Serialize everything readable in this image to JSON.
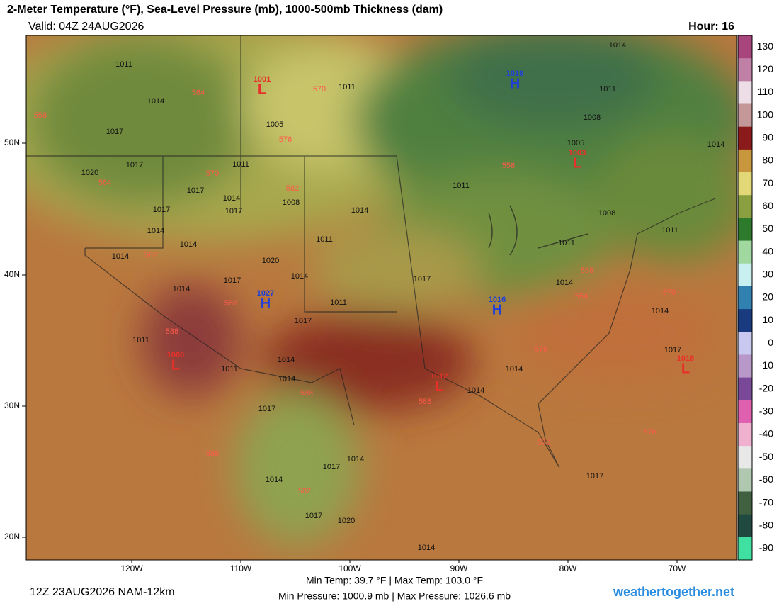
{
  "header": {
    "title": "2-Meter Temperature (°F), Sea-Level Pressure (mb), 1000-500mb Thickness (dam)",
    "valid": "Valid: 04Z 24AUG2026",
    "hour": "Hour: 16"
  },
  "map": {
    "lat_labels": [
      "50N",
      "40N",
      "30N",
      "20N"
    ],
    "lon_labels": [
      "120W",
      "110W",
      "100W",
      "90W",
      "80W",
      "70W"
    ],
    "centers": [
      {
        "letter": "L",
        "pressure": 1001,
        "color": "#e8302a"
      },
      {
        "letter": "H",
        "pressure": 1019,
        "color": "#2040d8"
      },
      {
        "letter": "L",
        "pressure": 1003,
        "color": "#e8302a"
      },
      {
        "letter": "H",
        "pressure": 1027,
        "color": "#2040d8"
      },
      {
        "letter": "H",
        "pressure": 1016,
        "color": "#2040d8"
      },
      {
        "letter": "L",
        "pressure": 1006,
        "color": "#e8302a"
      },
      {
        "letter": "L",
        "pressure": 1012,
        "color": "#e8302a"
      },
      {
        "letter": "L",
        "pressure": 1018,
        "color": "#e8302a"
      }
    ],
    "isobar_labels": [
      1011,
      1014,
      1017,
      1017,
      1020,
      1017,
      1017,
      1014,
      1017,
      1014,
      1014,
      1014,
      1014,
      1017,
      1020,
      1014,
      1011,
      1005,
      1008,
      1011,
      1014,
      1011,
      1011,
      1017,
      1017,
      1014,
      1014,
      1011,
      1011,
      1017,
      1014,
      1017,
      1014,
      1017,
      1020,
      1014,
      1014,
      1014,
      1014,
      1011,
      1008,
      1011,
      1014,
      1017,
      1005,
      1008,
      1011,
      1014,
      1014,
      1011,
      1017
    ],
    "thickness_labels": [
      558,
      564,
      570,
      576,
      570,
      582,
      564,
      582,
      588,
      588,
      588,
      588,
      576,
      558,
      558,
      564,
      570,
      576,
      576,
      582,
      588
    ]
  },
  "colorbar": {
    "ticks": [
      130,
      120,
      110,
      100,
      90,
      80,
      70,
      60,
      50,
      40,
      30,
      20,
      10,
      0,
      -10,
      -20,
      -30,
      -40,
      -50,
      -60,
      -70,
      -80,
      -90
    ],
    "colors": [
      "#a8457d",
      "#c07fa5",
      "#ecdde6",
      "#c49898",
      "#8b1a1a",
      "#c8963c",
      "#e2d878",
      "#8aa040",
      "#2d7a2d",
      "#a0d8a0",
      "#c8f0f0",
      "#3080b0",
      "#1a3a80",
      "#c8c8f0",
      "#b898c8",
      "#7a4898",
      "#e060b0",
      "#f0b0d0",
      "#e8e8e8",
      "#b0c8b0",
      "#406040",
      "#204a40",
      "#40e0a0"
    ]
  },
  "footer": {
    "run": "12Z 23AUG2026 NAM-12km",
    "temp": "Min Temp:  39.7 °F | Max Temp: 103.0 °F",
    "pressure": "Min Pressure: 1000.9 mb | Max Pressure: 1026.6 mb",
    "site": "weathertogether.net"
  }
}
